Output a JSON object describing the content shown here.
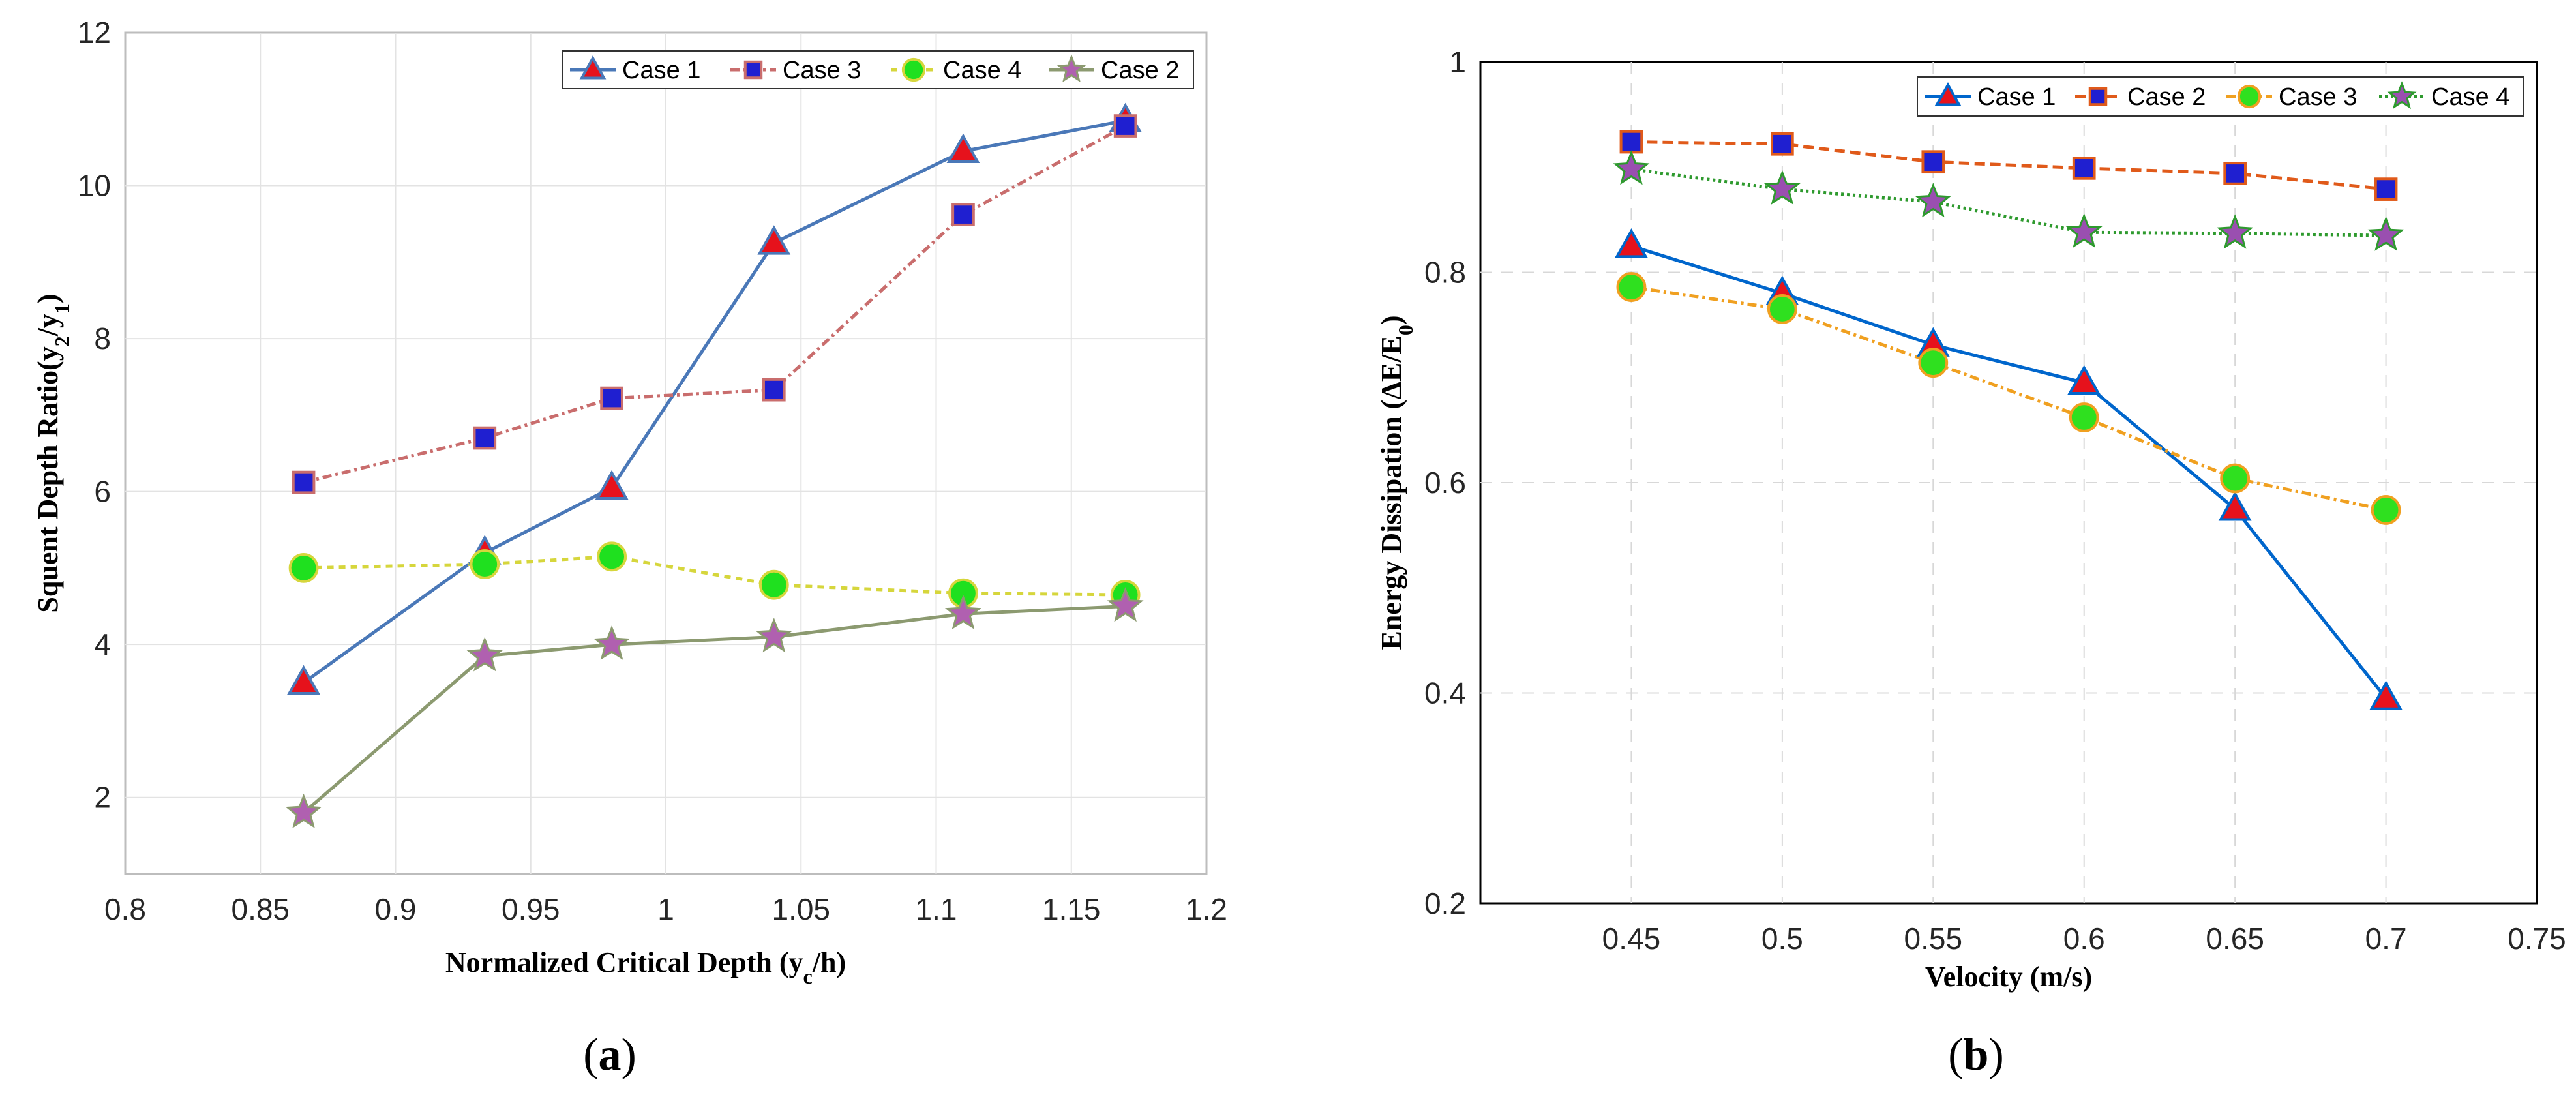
{
  "chart_data": [
    {
      "type": "line",
      "panel": "(a)",
      "caption": "a",
      "xlabel_parts": [
        "Normalized Critical Depth (y",
        "c",
        "/h)"
      ],
      "ylabel_parts": [
        "Squent Depth Ratio(y",
        "2",
        "/y",
        "1",
        ")"
      ],
      "xlim": [
        0.8,
        1.2
      ],
      "ylim": [
        1,
        12
      ],
      "xticks": [
        "0.8",
        "0.85",
        "0.9",
        "0.95",
        "1",
        "1.05",
        "1.1",
        "1.15",
        "1.2"
      ],
      "yticks": [
        "2",
        "4",
        "6",
        "8",
        "10",
        "12"
      ],
      "grid": true,
      "legend_position": "top-right",
      "legend": [
        "Case 1",
        "Case 3",
        "Case 4",
        "Case 2"
      ],
      "x": [
        0.866,
        0.933,
        0.98,
        1.04,
        1.11,
        1.17
      ],
      "series": [
        {
          "name": "Case 1",
          "values": [
            3.5,
            5.2,
            6.05,
            9.25,
            10.45,
            10.85
          ],
          "color": "#4a78b8",
          "marker": "triangle",
          "marker_fill": "#e6121c",
          "dash": ""
        },
        {
          "name": "Case 3",
          "values": [
            6.12,
            6.7,
            7.22,
            7.33,
            9.62,
            10.78
          ],
          "color": "#c96d6d",
          "marker": "square",
          "marker_fill": "#1f1fd0",
          "dash": "14,6,4,6"
        },
        {
          "name": "Case 4",
          "values": [
            5.0,
            5.05,
            5.15,
            4.78,
            4.67,
            4.65
          ],
          "color": "#d6d63c",
          "marker": "circle",
          "marker_fill": "#1fe01f",
          "dash": "10,8"
        },
        {
          "name": "Case 2",
          "values": [
            1.8,
            3.85,
            4.0,
            4.1,
            4.4,
            4.5
          ],
          "color": "#8c9a70",
          "marker": "star",
          "marker_fill": "#b060b0",
          "dash": ""
        }
      ]
    },
    {
      "type": "line",
      "panel": "(b)",
      "caption": "b",
      "xlabel_parts": [
        "Velocity (m/s)"
      ],
      "ylabel_parts": [
        "Energy Dissipation (ΔE/E",
        "0",
        ")"
      ],
      "xlim": [
        0.4,
        0.75
      ],
      "ylim": [
        0.2,
        1.0
      ],
      "xticks": [
        "0.45",
        "0.5",
        "0.55",
        "0.6",
        "0.65",
        "0.7",
        "0.75"
      ],
      "yticks": [
        "0.2",
        "0.4",
        "0.6",
        "0.8",
        "1"
      ],
      "grid": true,
      "legend_position": "top-right",
      "legend": [
        "Case 1",
        "Case 2",
        "Case 3",
        "Case 4"
      ],
      "x": [
        0.45,
        0.5,
        0.55,
        0.6,
        0.65,
        0.7
      ],
      "series": [
        {
          "name": "Case 1",
          "values": [
            0.825,
            0.78,
            0.731,
            0.695,
            0.575,
            0.395
          ],
          "color": "#0066cc",
          "marker": "triangle",
          "marker_fill": "#e6121c",
          "dash": ""
        },
        {
          "name": "Case 2",
          "values": [
            0.924,
            0.922,
            0.905,
            0.899,
            0.894,
            0.879
          ],
          "color": "#e05a1a",
          "marker": "square",
          "marker_fill": "#1f1fd0",
          "dash": "16,8"
        },
        {
          "name": "Case 3",
          "values": [
            0.786,
            0.765,
            0.714,
            0.662,
            0.604,
            0.574
          ],
          "color": "#f0a020",
          "marker": "circle",
          "marker_fill": "#2fe01f",
          "dash": "14,6,4,6"
        },
        {
          "name": "Case 4",
          "values": [
            0.898,
            0.879,
            0.867,
            0.838,
            0.837,
            0.835
          ],
          "color": "#2e9a2e",
          "marker": "star",
          "marker_fill": "#9a4fb0",
          "dash": "4,5"
        }
      ]
    }
  ]
}
